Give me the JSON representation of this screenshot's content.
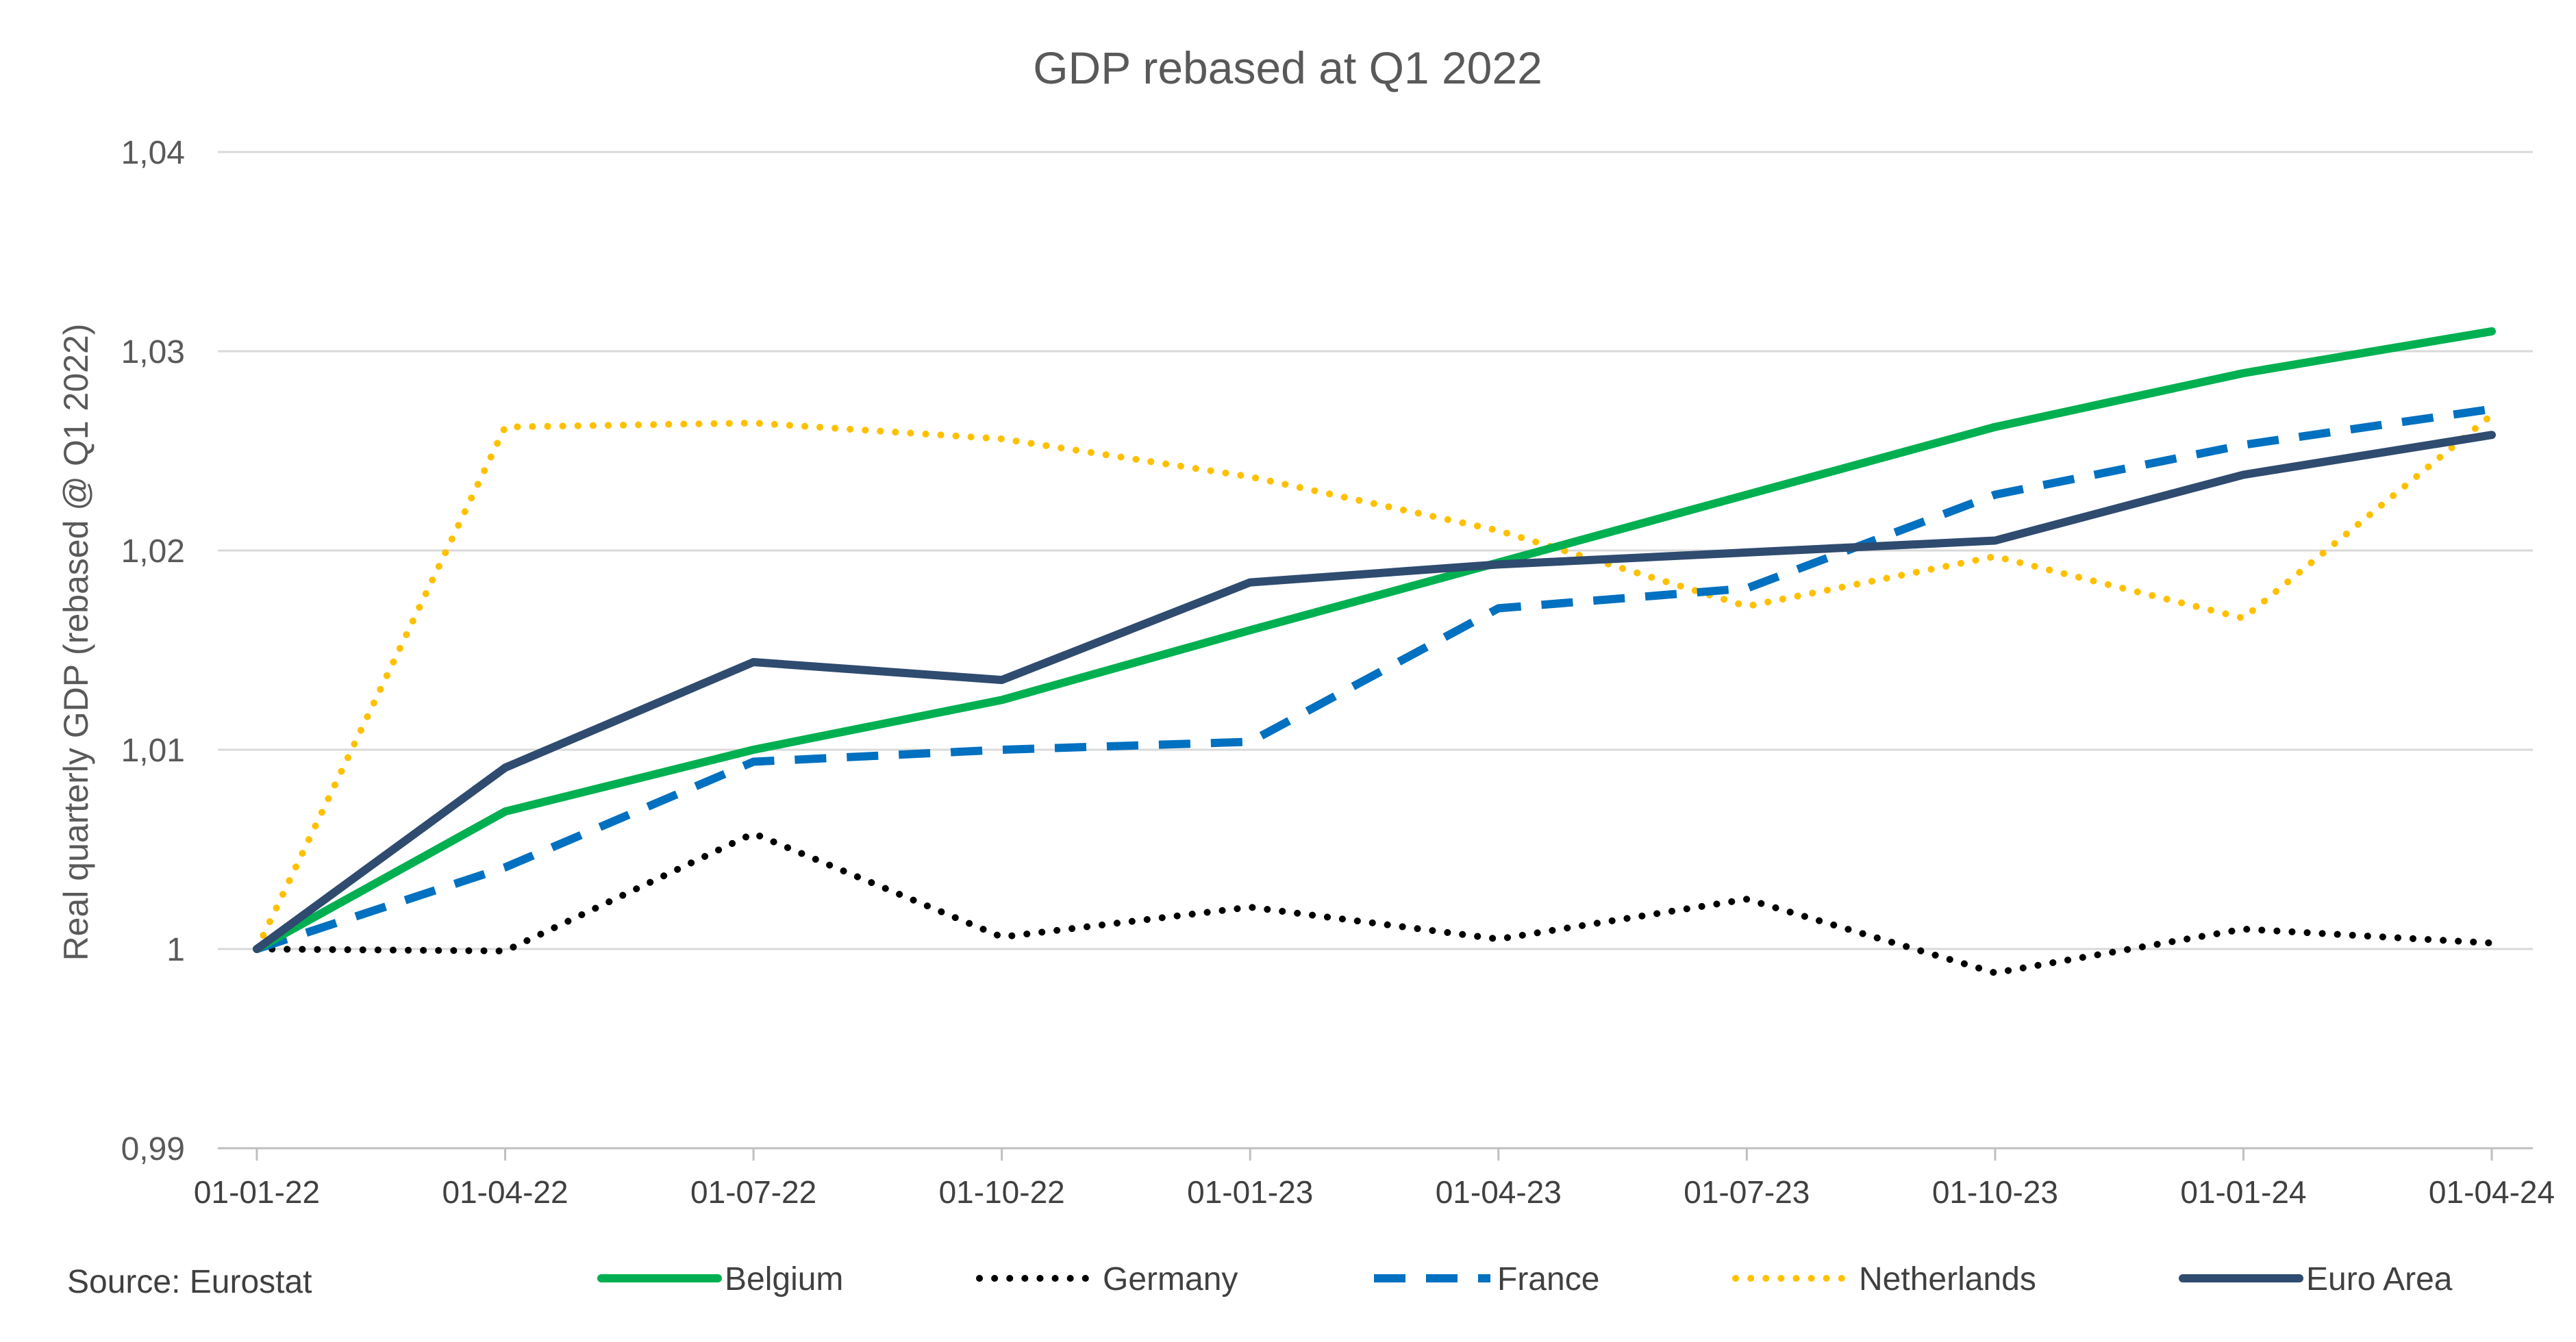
{
  "chart_data": {
    "type": "line",
    "title": "GDP rebased at Q1 2022",
    "ylabel": "Real quarterly GDP (rebased @ Q1 2022)",
    "xlabel": "",
    "source": "Source: Eurostat",
    "categories": [
      "01-01-22",
      "01-04-22",
      "01-07-22",
      "01-10-22",
      "01-01-23",
      "01-04-23",
      "01-07-23",
      "01-10-23",
      "01-01-24",
      "01-04-24"
    ],
    "ylim": [
      0.99,
      1.04
    ],
    "yticks": [
      0.99,
      1,
      1.01,
      1.02,
      1.03,
      1.04
    ],
    "ytick_labels": [
      "0,99",
      "1",
      "1,01",
      "1,02",
      "1,03",
      "1,04"
    ],
    "grid": "horizontal",
    "legend_position": "bottom",
    "series": [
      {
        "name": "Belgium",
        "color": "#00B050",
        "style": "solid",
        "values": [
          1.0,
          1.0069,
          1.01,
          1.0125,
          1.016,
          1.0194,
          1.0228,
          1.0262,
          1.0289,
          1.031
        ]
      },
      {
        "name": "Germany",
        "color": "#000000",
        "style": "dotted",
        "values": [
          1.0,
          0.9999,
          1.0058,
          1.0006,
          1.0021,
          1.0005,
          1.0025,
          0.9988,
          1.001,
          1.0003
        ]
      },
      {
        "name": "France",
        "color": "#0070C0",
        "style": "dashed",
        "values": [
          1.0,
          1.0041,
          1.0094,
          1.01,
          1.0104,
          1.0171,
          1.0181,
          1.0228,
          1.0253,
          1.0271
        ]
      },
      {
        "name": "Netherlands",
        "color": "#FFC000",
        "style": "dotted",
        "values": [
          1.0,
          1.0262,
          1.0264,
          1.0256,
          1.0237,
          1.021,
          1.0172,
          1.0197,
          1.0166,
          1.0268
        ]
      },
      {
        "name": "Euro Area",
        "color": "#2F4B6F",
        "style": "solid",
        "values": [
          1.0,
          1.0091,
          1.0144,
          1.0135,
          1.0184,
          1.0193,
          1.0199,
          1.0205,
          1.0238,
          1.0258
        ]
      }
    ]
  }
}
